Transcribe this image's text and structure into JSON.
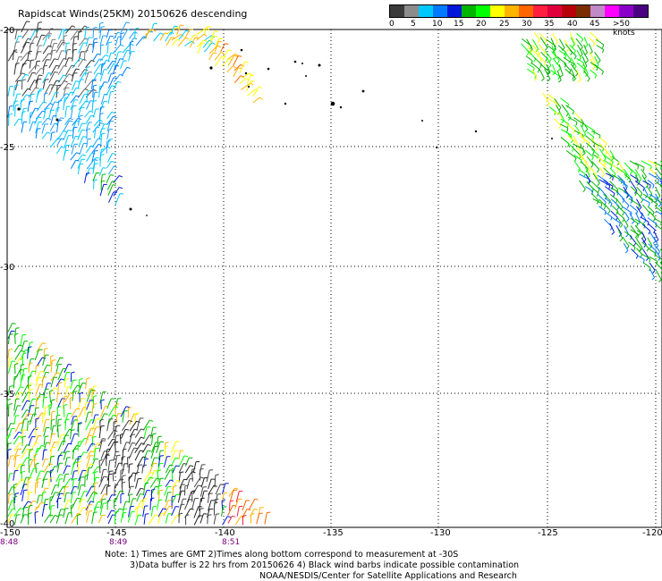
{
  "title": "Rapidscat Winds(25KM) 20150626 descending",
  "legend": {
    "labels": [
      "0",
      "5",
      "10",
      "15",
      "20",
      "25",
      "30",
      "35",
      "40",
      "45",
      ">50 knots"
    ],
    "colors": [
      "#3a3a3a",
      "#8c8c8c",
      "#00c8ff",
      "#007bff",
      "#0018d8",
      "#00b400",
      "#00ff00",
      "#ffff00",
      "#ffb400",
      "#ff6600",
      "#ff2040",
      "#e0003c",
      "#b8000a",
      "#7a2e00",
      "#c08ac8",
      "#ff00ff",
      "#8a00c8",
      "#4b0082"
    ]
  },
  "axes": {
    "lat_labels": [
      "-20",
      "-25",
      "-30",
      "-35",
      "-40"
    ],
    "lon_labels": [
      "-150",
      "-145",
      "-140",
      "-135",
      "-130",
      "-125",
      "-120"
    ]
  },
  "times": [
    "8:48",
    "8:49",
    "8:51"
  ],
  "notes": {
    "line1": "Note: 1) Times are GMT 2)Times along bottom correspond to measurement at -30S",
    "line2": "3)Data buffer is 22 hrs from 20150626 4) Black wind barbs indicate possible contamination",
    "line3": "NOAA/NESDIS/Center for Satellite Applications and Research"
  }
}
